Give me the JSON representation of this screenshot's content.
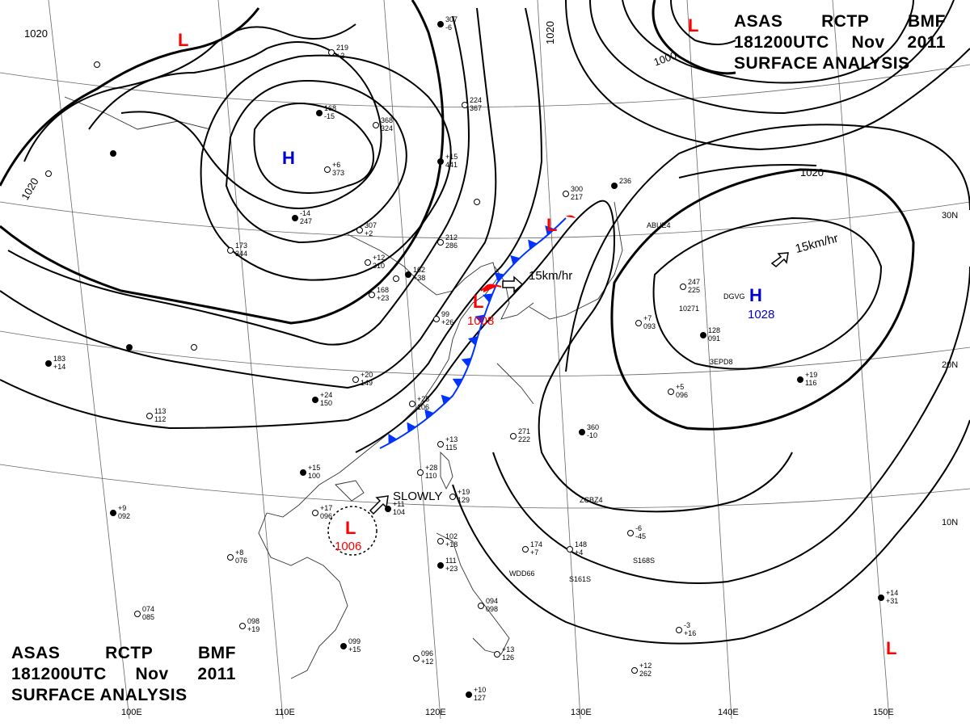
{
  "header": {
    "agency_line": [
      "ASAS",
      "RCTP",
      "BMF"
    ],
    "time_line": [
      "181200UTC",
      "Nov",
      "2011"
    ],
    "product_line": "SURFACE ANALYSIS"
  },
  "colors": {
    "background": "#ffffff",
    "lines": "#000000",
    "low": "#ff0000",
    "high": "#0000cc",
    "cold_front": "#0033ff",
    "warm_front": "#ff0000"
  },
  "isobar_labels": [
    "1020",
    "1020",
    "1020",
    "1000",
    "1020"
  ],
  "pressure_centers": [
    {
      "type": "L",
      "symbol": "L",
      "value": ""
    },
    {
      "type": "L",
      "symbol": "L",
      "value": ""
    },
    {
      "type": "H",
      "symbol": "H",
      "value": ""
    },
    {
      "type": "L",
      "symbol": "L",
      "value": "1008"
    },
    {
      "type": "H",
      "symbol": "H",
      "value": "1028"
    },
    {
      "type": "L",
      "symbol": "L",
      "value": "1006"
    },
    {
      "type": "L",
      "symbol": "L",
      "value": ""
    }
  ],
  "motions": [
    {
      "label": "15km/hr"
    },
    {
      "label": "15km/hr"
    },
    {
      "label": "SLOWLY"
    }
  ],
  "longitude_labels": [
    "100E",
    "110E",
    "120E",
    "130E",
    "140E",
    "150E"
  ],
  "latitude_labels": [
    "30N",
    "20N",
    "10N"
  ],
  "station_codes": [
    "ABUE4",
    "DGVG",
    "3EPD8",
    "ZCBZ4",
    "WDD66",
    "S168S",
    "S161S",
    "10271"
  ],
  "station_values": [
    "307",
    "-6",
    "219",
    "+2",
    "224",
    "367",
    "168",
    "-15",
    "368",
    "324",
    "+6",
    "373",
    "+15",
    "441",
    "307",
    "+2",
    "212",
    "286",
    "-14",
    "247",
    "173",
    "344",
    "+12",
    "310",
    "162",
    "+38",
    "168",
    "+23",
    "99",
    "+26",
    "183",
    "+14",
    "113",
    "112",
    "+20",
    "149",
    "+24",
    "150",
    "+25",
    "106",
    "+13",
    "115",
    "+15",
    "100",
    "+28",
    "110",
    "+19",
    "129",
    "+11",
    "104",
    "+17",
    "096",
    "+8",
    "076",
    "+9",
    "092",
    "074",
    "085",
    "098",
    "+19",
    "099",
    "+15",
    "096",
    "+12",
    "102",
    "+18",
    "111",
    "+23",
    "094",
    "098",
    "+13",
    "126",
    "+10",
    "127",
    "174",
    "+7",
    "148",
    "+4",
    "360",
    "-10",
    "271",
    "222",
    "247",
    "225",
    "128",
    "091",
    "+7",
    "093",
    "+5",
    "096",
    "+19",
    "116",
    "-6",
    "-45",
    "-3",
    "+16",
    "+14",
    "+31",
    "+12",
    "262",
    "300",
    "217",
    "236"
  ]
}
